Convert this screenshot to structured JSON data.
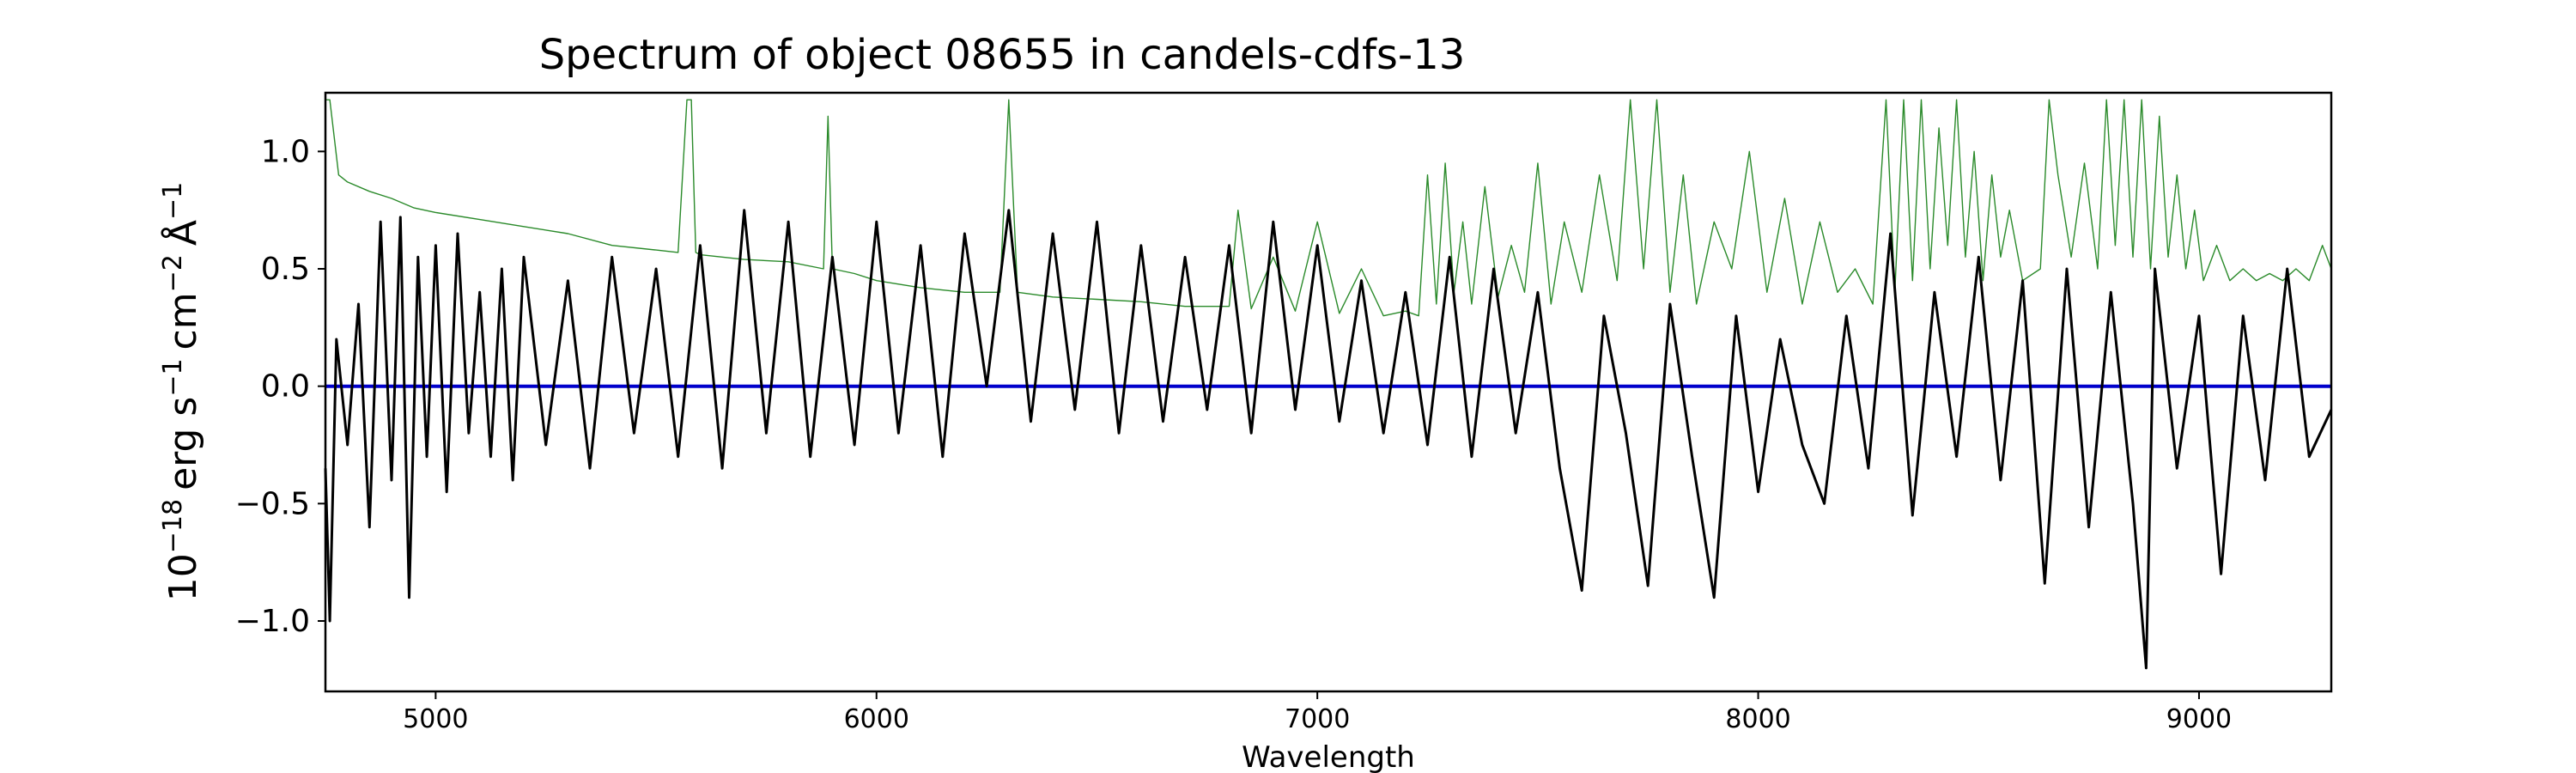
{
  "chart_data": {
    "type": "line",
    "title": "Spectrum of object 08655 in candels-cdfs-13",
    "xlabel": "Wavelength",
    "ylabel_parts": {
      "base": "10",
      "base_exp": "−18",
      "unit1": "erg s",
      "unit1_exp": "−1",
      "unit2": "cm",
      "unit2_exp": "−2",
      "unit3": "Å",
      "unit3_exp": "−1"
    },
    "xlim": [
      4750,
      9300
    ],
    "ylim": [
      -1.3,
      1.25
    ],
    "xticks": [
      5000,
      6000,
      7000,
      8000,
      9000
    ],
    "yticks": [
      -1.0,
      -0.5,
      0.0,
      0.5,
      1.0
    ],
    "xtick_labels": [
      "5000",
      "6000",
      "7000",
      "8000",
      "9000"
    ],
    "ytick_labels": [
      "−1.0",
      "−0.5",
      "0.0",
      "0.5",
      "1.0"
    ],
    "grid": false,
    "legend": "none",
    "series": [
      {
        "role": "flux",
        "color": "#000000",
        "x": [
          4750,
          4760,
          4775,
          4800,
          4825,
          4850,
          4875,
          4900,
          4920,
          4940,
          4960,
          4980,
          5000,
          5025,
          5050,
          5075,
          5100,
          5125,
          5150,
          5175,
          5200,
          5250,
          5300,
          5350,
          5400,
          5450,
          5500,
          5550,
          5600,
          5650,
          5700,
          5750,
          5800,
          5850,
          5900,
          5950,
          6000,
          6050,
          6100,
          6150,
          6200,
          6250,
          6300,
          6350,
          6400,
          6450,
          6500,
          6550,
          6600,
          6650,
          6700,
          6750,
          6800,
          6850,
          6900,
          6950,
          7000,
          7050,
          7100,
          7150,
          7200,
          7250,
          7300,
          7350,
          7400,
          7450,
          7500,
          7550,
          7600,
          7650,
          7700,
          7750,
          7800,
          7850,
          7900,
          7950,
          8000,
          8050,
          8100,
          8150,
          8200,
          8250,
          8300,
          8350,
          8400,
          8450,
          8500,
          8550,
          8600,
          8650,
          8700,
          8750,
          8800,
          8850,
          8880,
          8900,
          8950,
          9000,
          9050,
          9100,
          9150,
          9200,
          9250,
          9300
        ],
        "y": [
          -0.35,
          -1.0,
          0.2,
          -0.25,
          0.35,
          -0.6,
          0.7,
          -0.4,
          0.72,
          -0.9,
          0.55,
          -0.3,
          0.6,
          -0.45,
          0.65,
          -0.2,
          0.4,
          -0.3,
          0.5,
          -0.4,
          0.55,
          -0.25,
          0.45,
          -0.35,
          0.55,
          -0.2,
          0.5,
          -0.3,
          0.6,
          -0.35,
          0.75,
          -0.2,
          0.7,
          -0.3,
          0.55,
          -0.25,
          0.7,
          -0.2,
          0.6,
          -0.3,
          0.65,
          0.0,
          0.75,
          -0.15,
          0.65,
          -0.1,
          0.7,
          -0.2,
          0.6,
          -0.15,
          0.55,
          -0.1,
          0.6,
          -0.2,
          0.7,
          -0.1,
          0.6,
          -0.15,
          0.45,
          -0.2,
          0.4,
          -0.25,
          0.55,
          -0.3,
          0.5,
          -0.2,
          0.4,
          -0.35,
          -0.87,
          0.3,
          -0.2,
          -0.85,
          0.35,
          -0.3,
          -0.9,
          0.3,
          -0.45,
          0.2,
          -0.25,
          -0.5,
          0.3,
          -0.35,
          0.65,
          -0.55,
          0.4,
          -0.3,
          0.55,
          -0.4,
          0.45,
          -0.84,
          0.5,
          -0.6,
          0.4,
          -0.5,
          -1.2,
          0.5,
          -0.35,
          0.3,
          -0.8,
          0.3,
          -0.4,
          0.5,
          -0.3,
          -0.1
        ]
      },
      {
        "role": "model",
        "color": "#2a8a2a",
        "x": [
          4750,
          4760,
          4780,
          4800,
          4850,
          4900,
          4950,
          5000,
          5100,
          5200,
          5300,
          5400,
          5500,
          5550,
          5570,
          5580,
          5590,
          5600,
          5700,
          5800,
          5880,
          5890,
          5900,
          5950,
          6000,
          6100,
          6200,
          6280,
          6300,
          6320,
          6400,
          6500,
          6600,
          6700,
          6800,
          6820,
          6850,
          6900,
          6950,
          7000,
          7050,
          7100,
          7150,
          7200,
          7230,
          7250,
          7270,
          7290,
          7310,
          7330,
          7350,
          7380,
          7410,
          7440,
          7470,
          7500,
          7530,
          7560,
          7600,
          7640,
          7680,
          7710,
          7740,
          7770,
          7800,
          7830,
          7860,
          7900,
          7940,
          7980,
          8020,
          8060,
          8100,
          8140,
          8180,
          8220,
          8260,
          8290,
          8310,
          8330,
          8350,
          8370,
          8390,
          8410,
          8430,
          8450,
          8470,
          8490,
          8510,
          8530,
          8550,
          8570,
          8600,
          8640,
          8660,
          8680,
          8710,
          8740,
          8770,
          8790,
          8810,
          8830,
          8850,
          8870,
          8890,
          8910,
          8930,
          8950,
          8970,
          8990,
          9010,
          9040,
          9070,
          9100,
          9130,
          9160,
          9190,
          9220,
          9250,
          9280,
          9300
        ],
        "y": [
          1.22,
          1.22,
          0.9,
          0.87,
          0.83,
          0.8,
          0.76,
          0.74,
          0.71,
          0.68,
          0.65,
          0.6,
          0.58,
          0.57,
          1.22,
          1.22,
          0.57,
          0.56,
          0.54,
          0.53,
          0.5,
          1.15,
          0.5,
          0.48,
          0.45,
          0.42,
          0.4,
          0.4,
          1.22,
          0.4,
          0.38,
          0.37,
          0.36,
          0.34,
          0.34,
          0.75,
          0.33,
          0.55,
          0.32,
          0.7,
          0.31,
          0.5,
          0.3,
          0.32,
          0.3,
          0.9,
          0.35,
          0.95,
          0.4,
          0.7,
          0.35,
          0.85,
          0.38,
          0.6,
          0.4,
          0.95,
          0.35,
          0.7,
          0.4,
          0.9,
          0.45,
          1.22,
          0.5,
          1.22,
          0.4,
          0.9,
          0.35,
          0.7,
          0.5,
          1.0,
          0.4,
          0.8,
          0.35,
          0.7,
          0.4,
          0.5,
          0.35,
          1.22,
          0.4,
          1.22,
          0.45,
          1.22,
          0.5,
          1.1,
          0.6,
          1.22,
          0.55,
          1.0,
          0.45,
          0.9,
          0.55,
          0.75,
          0.45,
          0.5,
          1.22,
          0.9,
          0.55,
          0.95,
          0.5,
          1.22,
          0.6,
          1.22,
          0.55,
          1.22,
          0.5,
          1.15,
          0.55,
          0.9,
          0.5,
          0.75,
          0.45,
          0.6,
          0.45,
          0.5,
          0.45,
          0.48,
          0.45,
          0.5,
          0.45,
          0.6,
          0.5
        ]
      },
      {
        "role": "zero",
        "color": "#0000cc",
        "x": [
          4750,
          9300
        ],
        "y": [
          0.0,
          0.0
        ]
      }
    ]
  }
}
